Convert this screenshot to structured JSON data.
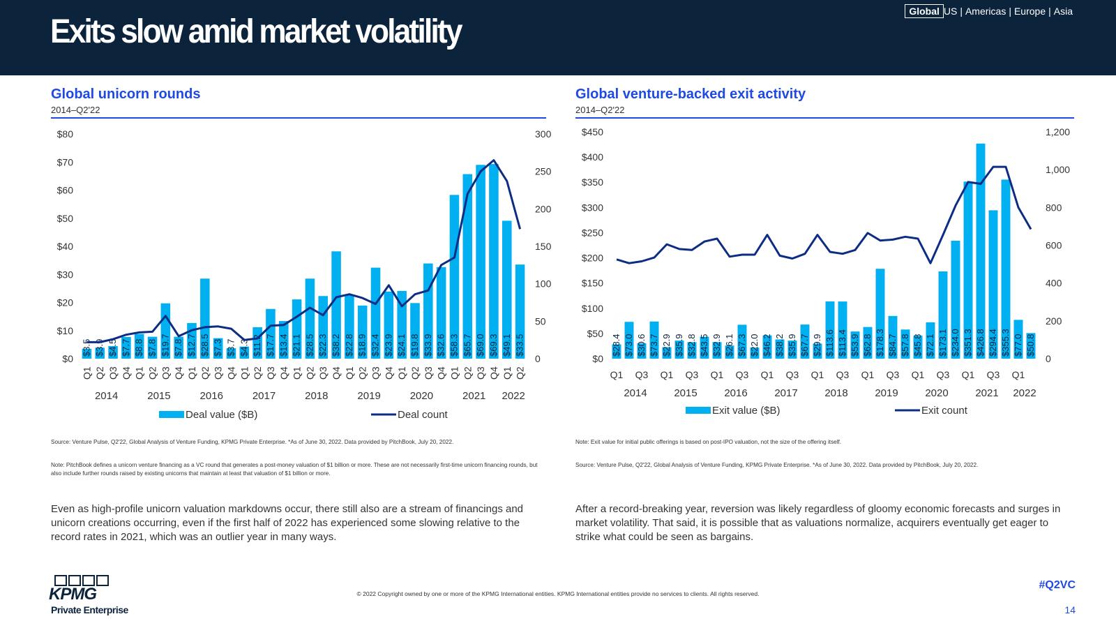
{
  "header": {
    "title": "Exits slow amid market volatility",
    "nav": [
      "Global",
      "US",
      "Americas",
      "Europe",
      "Asia"
    ],
    "nav_active": "Global",
    "bg_color": "#0c233c"
  },
  "colors": {
    "bar": "#00b0f0",
    "line": "#0c2d83",
    "accent": "#1e49e2"
  },
  "left_chart": {
    "title": "Global unicorn rounds",
    "subtitle": "2014–Q2'22",
    "notes": [
      "Source: Venture Pulse, Q2'22, Global Analysis of Venture Funding, KPMG Private Enterprise. *As of June 30, 2022. Data provided by PitchBook, July 20, 2022.",
      "Note: PitchBook defines a unicorn venture financing as a VC round that generates a post-money valuation of $1 billion or more. These are not necessarily first-time unicorn financing rounds, but also include further rounds raised by existing unicorns that maintain at least that valuation of $1 billion or more."
    ],
    "body": "Even as high-profile unicorn valuation markdowns occur, there still also are a stream of financings and unicorn creations occurring, even if the first half of 2022 has experienced some slowing relative to the record rates in 2021, which was an outlier year in many ways."
  },
  "right_chart": {
    "title": "Global venture-backed exit activity",
    "subtitle": "2014–Q2'22",
    "notes": [
      "Note: Exit value for initial public offerings is based on post-IPO valuation, not the size of the offering itself.",
      "Source: Venture Pulse, Q2'22, Global Analysis of Venture Funding, KPMG Private Enterprise. *As of June 30, 2022. Data provided by PitchBook, July 20, 2022."
    ],
    "body": "After a record-breaking year, reversion was likely regardless of gloomy economic forecasts and surges in market volatility. That said, it is possible that as valuations normalize, acquirers eventually get eager to strike what could be seen as bargains."
  },
  "chart_data": [
    {
      "type": "bar",
      "title": "Global unicorn rounds",
      "categories": [
        "Q1",
        "Q2",
        "Q3",
        "Q4",
        "Q1",
        "Q2",
        "Q3",
        "Q4",
        "Q1",
        "Q2",
        "Q3",
        "Q4",
        "Q1",
        "Q2",
        "Q3",
        "Q4",
        "Q1",
        "Q2",
        "Q3",
        "Q4",
        "Q1",
        "Q2",
        "Q3",
        "Q4",
        "Q1",
        "Q2",
        "Q3",
        "Q4",
        "Q1",
        "Q2",
        "Q3",
        "Q4",
        "Q1",
        "Q2"
      ],
      "year_labels": [
        "2014",
        "2015",
        "2016",
        "2017",
        "2018",
        "2019",
        "2020",
        "2021",
        "2022"
      ],
      "series": [
        {
          "name": "Deal value ($B)",
          "axis": "left",
          "values": [
            3.5,
            3.9,
            4.5,
            7.7,
            8.8,
            7.8,
            19.7,
            7.8,
            12.7,
            28.5,
            7.3,
            3.7,
            4.3,
            11.2,
            17.7,
            13.4,
            21.1,
            28.5,
            22.3,
            38.2,
            22.8,
            18.9,
            32.4,
            23.9,
            24.1,
            19.8,
            33.9,
            32.6,
            58.3,
            65.7,
            69.0,
            69.3,
            49.1,
            33.5
          ],
          "labels": [
            "$3.5",
            "$3.9",
            "$4.5",
            "$7.7",
            "$8.8",
            "$7.8",
            "$19.7",
            "$7.8",
            "$12.7",
            "$28.5",
            "$7.3",
            "$3.7",
            "$4.3",
            "$11.2",
            "$17.7",
            "$13.4",
            "$21.1",
            "$28.5",
            "$22.3",
            "$38.2",
            "$22.8",
            "$18.9",
            "$32.4",
            "$23.9",
            "$24.1",
            "$19.8",
            "$33.9",
            "$32.6",
            "$58.3",
            "$65.7",
            "$69.0",
            "$69.3",
            "$49.1",
            "$33.5"
          ]
        },
        {
          "name": "Deal count",
          "axis": "right",
          "values": [
            22,
            22,
            26,
            32,
            35,
            36,
            57,
            30,
            38,
            42,
            43,
            40,
            25,
            27,
            44,
            45,
            56,
            68,
            58,
            82,
            86,
            81,
            73,
            98,
            70,
            86,
            91,
            125,
            135,
            220,
            250,
            265,
            237,
            173
          ]
        }
      ],
      "y_left": {
        "min": 0,
        "max": 80,
        "ticks": [
          "$0",
          "$10",
          "$20",
          "$30",
          "$40",
          "$50",
          "$60",
          "$70",
          "$80"
        ]
      },
      "y_right": {
        "min": 0,
        "max": 300,
        "ticks": [
          "0",
          "50",
          "100",
          "150",
          "200",
          "250",
          "300"
        ]
      },
      "legend": "bottom"
    },
    {
      "type": "bar",
      "title": "Global venture-backed exit activity",
      "categories": [
        "Q1",
        "Q2",
        "Q3",
        "Q4",
        "Q1",
        "Q2",
        "Q3",
        "Q4",
        "Q1",
        "Q2",
        "Q3",
        "Q4",
        "Q1",
        "Q2",
        "Q3",
        "Q4",
        "Q1",
        "Q2",
        "Q3",
        "Q4",
        "Q1",
        "Q2",
        "Q3",
        "Q4",
        "Q1",
        "Q2",
        "Q3",
        "Q4",
        "Q1",
        "Q2",
        "Q3",
        "Q4",
        "Q1",
        "Q2"
      ],
      "tick_labels": [
        "Q1",
        "Q3",
        "Q1",
        "Q3",
        "Q1",
        "Q3",
        "Q1",
        "Q3",
        "Q1",
        "Q3",
        "Q1",
        "Q3",
        "Q1",
        "Q3",
        "Q1",
        "Q3",
        "Q1"
      ],
      "year_labels": [
        "2014",
        "2015",
        "2016",
        "2017",
        "2018",
        "2019",
        "2020",
        "2021",
        "2022"
      ],
      "series": [
        {
          "name": "Exit value ($B)",
          "axis": "left",
          "values": [
            28.4,
            73.0,
            30.6,
            73.7,
            22.9,
            35.9,
            32.8,
            43.5,
            32.9,
            26.1,
            67.3,
            22.0,
            46.2,
            38.2,
            35.9,
            67.7,
            29.9,
            113.6,
            113.4,
            53.9,
            62.8,
            178.3,
            84.7,
            57.8,
            45.8,
            72.1,
            173.1,
            234.0,
            351.3,
            426.8,
            294.4,
            355.3,
            77.0,
            50.8
          ],
          "labels": [
            "$28.4",
            "$73.0",
            "$30.6",
            "$73.7",
            "$22.9",
            "$35.9",
            "$32.8",
            "$43.5",
            "$32.9",
            "$26.1",
            "$67.3",
            "$22.0",
            "$46.2",
            "$38.2",
            "$35.9",
            "$67.7",
            "$29.9",
            "$113.6",
            "$113.4",
            "$53.9",
            "$62.8",
            "$178.3",
            "$84.7",
            "$57.8",
            "$45.8",
            "$72.1",
            "$173.1",
            "$234.0",
            "$351.3",
            "$426.8",
            "$294.4",
            "$355.3",
            "$77.0",
            "$50.8"
          ]
        },
        {
          "name": "Exit count",
          "axis": "right",
          "values": [
            525,
            505,
            515,
            535,
            605,
            580,
            575,
            620,
            635,
            540,
            550,
            550,
            655,
            545,
            530,
            555,
            655,
            565,
            555,
            575,
            665,
            625,
            630,
            645,
            635,
            505,
            655,
            810,
            935,
            925,
            1015,
            1015,
            800,
            685
          ]
        }
      ],
      "y_left": {
        "min": 0,
        "max": 450,
        "ticks": [
          "$0",
          "$50",
          "$100",
          "$150",
          "$200",
          "$250",
          "$300",
          "$350",
          "$400",
          "$450"
        ]
      },
      "y_right": {
        "min": 0,
        "max": 1200,
        "ticks": [
          "0",
          "200",
          "400",
          "600",
          "800",
          "1,000",
          "1,200"
        ]
      },
      "legend": "bottom"
    }
  ],
  "footer": {
    "logo": "KPMG",
    "logo_sub": "Private Enterprise",
    "copyright": "© 2022 Copyright owned by one or more of the KPMG International entities. KPMG International entities provide no services to clients. All rights reserved.",
    "hashtag": "#Q2VC",
    "page": "14"
  }
}
